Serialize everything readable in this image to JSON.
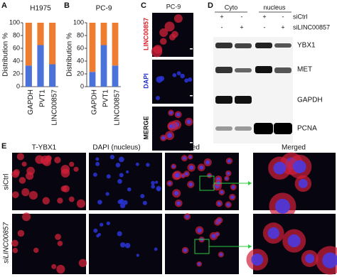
{
  "panels": {
    "A": {
      "letter": "A",
      "type": "bar",
      "title": "H1975",
      "ylabel": "Distribution %",
      "categories": [
        "GAPDH",
        "PVT1",
        "LINC00857"
      ],
      "series": [
        {
          "color": "#4a72d9",
          "values": [
            33,
            65,
            35
          ]
        },
        {
          "color": "#ee7d31",
          "values": [
            67,
            35,
            65
          ]
        }
      ],
      "ylim": [
        0,
        100
      ],
      "yticks": [
        0,
        20,
        40,
        60,
        80,
        100
      ]
    },
    "B": {
      "letter": "B",
      "type": "bar",
      "title": "PC-9",
      "ylabel": "Distribution %",
      "categories": [
        "GAPDH",
        "PVT1",
        "LINC00857"
      ],
      "series": [
        {
          "color": "#4a72d9",
          "values": [
            23,
            65,
            33
          ]
        },
        {
          "color": "#ee7d31",
          "values": [
            77,
            35,
            67
          ]
        }
      ],
      "ylim": [
        0,
        100
      ],
      "yticks": [
        0,
        20,
        40,
        60,
        80,
        100
      ]
    },
    "C": {
      "letter": "C",
      "title": "PC-9",
      "rows": [
        "LINC00857",
        "DAPI",
        "MERGE"
      ]
    },
    "D": {
      "letter": "D",
      "groups": [
        "Cyto",
        "nucleus"
      ],
      "treatments": [
        {
          "label": "siCtrl",
          "signs": [
            "+",
            "-",
            "+",
            "-"
          ]
        },
        {
          "label": "siLINC00857",
          "signs": [
            "-",
            "+",
            "-",
            "+"
          ]
        }
      ],
      "bands": [
        "YBX1",
        "MET",
        "GAPDH",
        "PCNA"
      ]
    },
    "E": {
      "letter": "E",
      "columns": [
        "T-YBX1",
        "DAPI (nucleus)",
        "Merged",
        "Merged"
      ],
      "rows": [
        "siCtrl",
        "siLINC00857"
      ]
    }
  }
}
